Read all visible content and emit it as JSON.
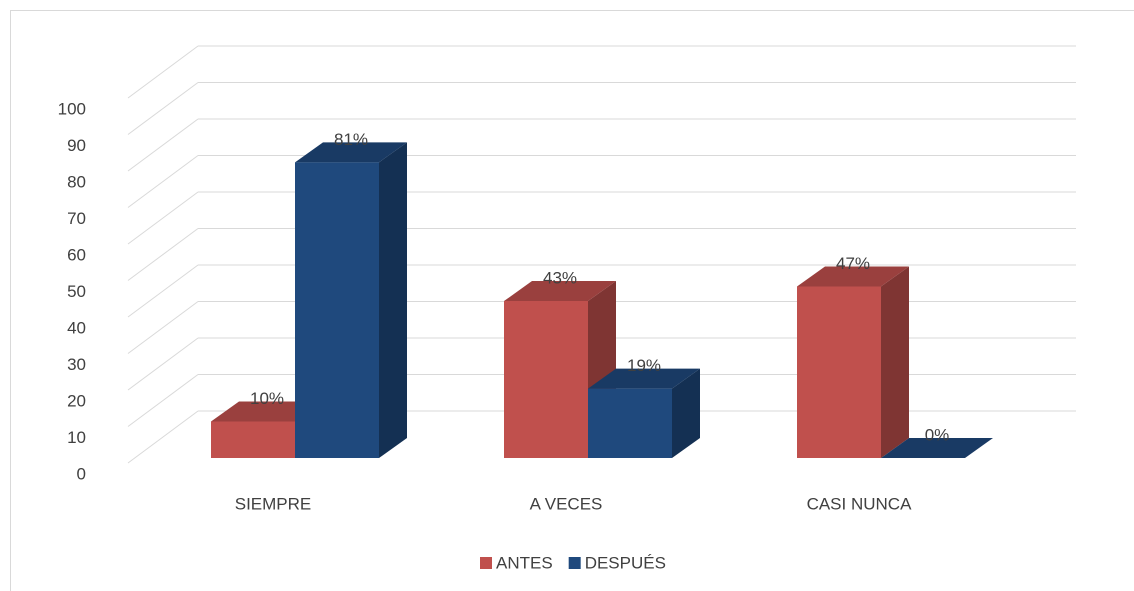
{
  "chart_data": {
    "type": "bar",
    "categories": [
      "SIEMPRE",
      "A VECES",
      "CASI NUNCA"
    ],
    "series": [
      {
        "name": "ANTES",
        "color": "#c0504d",
        "values": [
          10,
          43,
          47
        ],
        "value_labels": [
          "10%",
          "43%",
          "47%"
        ]
      },
      {
        "name": "DESPUÉS",
        "color": "#1f497d",
        "values": [
          81,
          19,
          0
        ],
        "value_labels": [
          "81%",
          "19%",
          "0%"
        ]
      }
    ],
    "ylim": [
      0,
      100
    ],
    "yticks": [
      0,
      10,
      20,
      30,
      40,
      50,
      60,
      70,
      80,
      90,
      100
    ],
    "grid": true,
    "legend": "bottom"
  }
}
